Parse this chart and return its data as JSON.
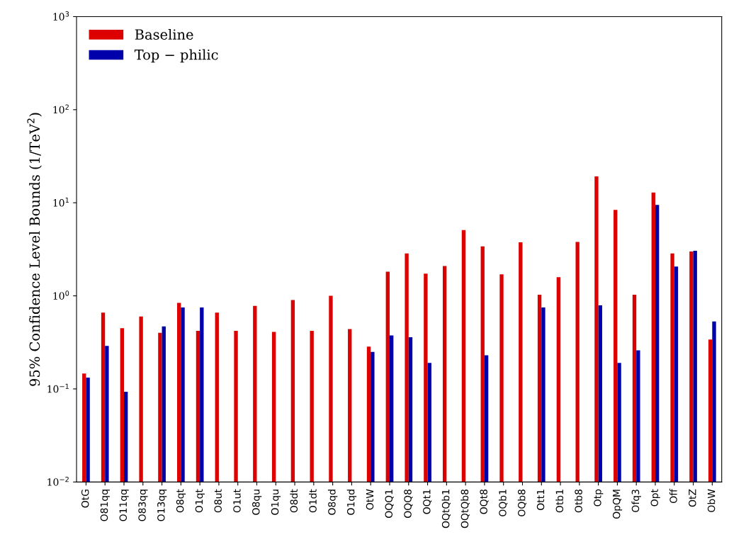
{
  "chart_data": {
    "type": "bar",
    "ylabel": "95% Confidence Level Bounds (1/TeV$^{2}$)",
    "categories": [
      "OtG",
      "O81qq",
      "O11qq",
      "O83qq",
      "O13qq",
      "O8qt",
      "O1qt",
      "O8ut",
      "O1ut",
      "O8qu",
      "O1qu",
      "O8dt",
      "O1dt",
      "O8qd",
      "O1qd",
      "OtW",
      "OQQ1",
      "OQQ8",
      "OQt1",
      "OQtQb1",
      "OQtQb8",
      "OQt8",
      "OQb1",
      "OQb8",
      "Ott1",
      "Otb1",
      "Otb8",
      "Otp",
      "OpQM",
      "Ofq3",
      "Opt",
      "Off",
      "OtZ",
      "ObW"
    ],
    "series": [
      {
        "name": "Baseline",
        "color": "#dd0000",
        "values": [
          0.146,
          0.66,
          0.45,
          0.6,
          0.4,
          0.84,
          0.42,
          0.66,
          0.42,
          0.78,
          0.41,
          0.9,
          0.42,
          1.0,
          0.44,
          0.285,
          1.82,
          2.85,
          1.73,
          2.09,
          5.1,
          3.4,
          1.7,
          3.76,
          1.03,
          1.59,
          3.8,
          19.2,
          8.4,
          1.03,
          12.9,
          2.85,
          3.0,
          0.34
        ]
      },
      {
        "name": "Top − philic",
        "color": "#0000aa",
        "values": [
          0.132,
          0.29,
          0.093,
          null,
          0.47,
          0.75,
          0.75,
          null,
          null,
          null,
          null,
          null,
          null,
          null,
          null,
          0.25,
          0.375,
          0.36,
          0.19,
          null,
          null,
          0.23,
          null,
          null,
          0.75,
          null,
          null,
          0.79,
          0.19,
          0.26,
          9.5,
          2.06,
          3.05,
          0.53
        ]
      }
    ],
    "log": true,
    "ylim": [
      0.01,
      1000
    ],
    "yticks": [
      {
        "value": 0.01,
        "label": "10$^{−2}$"
      },
      {
        "value": 0.1,
        "label": "10$^{−1}$"
      },
      {
        "value": 1,
        "label": "10$^{0}$"
      },
      {
        "value": 10,
        "label": "10$^{1}$"
      },
      {
        "value": 100,
        "label": "10$^{2}$"
      },
      {
        "value": 1000,
        "label": "10$^{3}$"
      }
    ],
    "grid": false,
    "legend": "top left"
  }
}
